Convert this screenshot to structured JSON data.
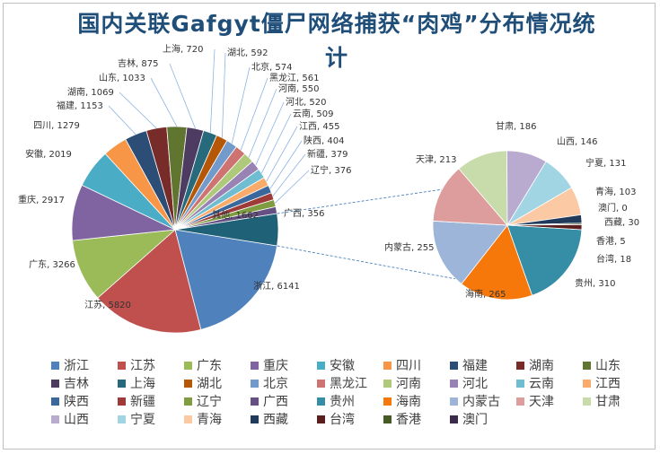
{
  "chart_data": {
    "type": "pie",
    "subtype": "pie-of-pie",
    "title": "国内关联Gafgyt僵尸网络捕获“肉鸡”分布情况统计",
    "legend_placement": "bottom",
    "slices": [
      {
        "name": "浙江",
        "value": 6141,
        "color": "#4f81bd"
      },
      {
        "name": "江苏",
        "value": 5820,
        "color": "#c0504d"
      },
      {
        "name": "广东",
        "value": 3266,
        "color": "#9bbb59"
      },
      {
        "name": "重庆",
        "value": 2917,
        "color": "#8064a2"
      },
      {
        "name": "安徽",
        "value": 2019,
        "color": "#4bacc6"
      },
      {
        "name": "四川",
        "value": 1279,
        "color": "#f79646"
      },
      {
        "name": "福建",
        "value": 1153,
        "color": "#2c4d75"
      },
      {
        "name": "湖南",
        "value": 1069,
        "color": "#772c2a"
      },
      {
        "name": "山东",
        "value": 1033,
        "color": "#5f7530"
      },
      {
        "name": "吉林",
        "value": 875,
        "color": "#4d3b62"
      },
      {
        "name": "上海",
        "value": 720,
        "color": "#276a7c"
      },
      {
        "name": "湖北",
        "value": 592,
        "color": "#b65708"
      },
      {
        "name": "北京",
        "value": 574,
        "color": "#729aca"
      },
      {
        "name": "黑龙江",
        "value": 561,
        "color": "#cd7371"
      },
      {
        "name": "河南",
        "value": 550,
        "color": "#afc97a"
      },
      {
        "name": "河北",
        "value": 520,
        "color": "#9983b5"
      },
      {
        "name": "云南",
        "value": 509,
        "color": "#6fbdd1"
      },
      {
        "name": "江西",
        "value": 455,
        "color": "#f9ab6b"
      },
      {
        "name": "陕西",
        "value": 404,
        "color": "#3a679c"
      },
      {
        "name": "新疆",
        "value": 379,
        "color": "#9e3b38"
      },
      {
        "name": "辽宁",
        "value": 376,
        "color": "#7f9d40"
      },
      {
        "name": "广西",
        "value": 356,
        "color": "#664f82"
      },
      {
        "name": "贵州",
        "value": 310,
        "color": "#358ea6"
      },
      {
        "name": "海南",
        "value": 265,
        "color": "#f6780b"
      },
      {
        "name": "内蒙古",
        "value": 255,
        "color": "#9cb5d8"
      },
      {
        "name": "天津",
        "value": 213,
        "color": "#dc9d9c"
      },
      {
        "name": "甘肃",
        "value": 186,
        "color": "#c8dbaa"
      },
      {
        "name": "山西",
        "value": 146,
        "color": "#b9aad0"
      },
      {
        "name": "宁夏",
        "value": 131,
        "color": "#a2d5e3"
      },
      {
        "name": "青海",
        "value": 103,
        "color": "#fbc9a3"
      },
      {
        "name": "西藏",
        "value": 30,
        "color": "#1f3a5a"
      },
      {
        "name": "台湾",
        "value": 18,
        "color": "#5a1f1d"
      },
      {
        "name": "香港",
        "value": 5,
        "color": "#465a24"
      },
      {
        "name": "澳门",
        "value": 0,
        "color": "#3a2c4a"
      }
    ],
    "secondary_slices": [
      "贵州",
      "海南",
      "内蒙古",
      "天津",
      "甘肃",
      "山西",
      "宁夏",
      "青海",
      "澳门",
      "西藏",
      "香港",
      "台湾"
    ],
    "other_label": "其他",
    "other_value": 1662
  }
}
